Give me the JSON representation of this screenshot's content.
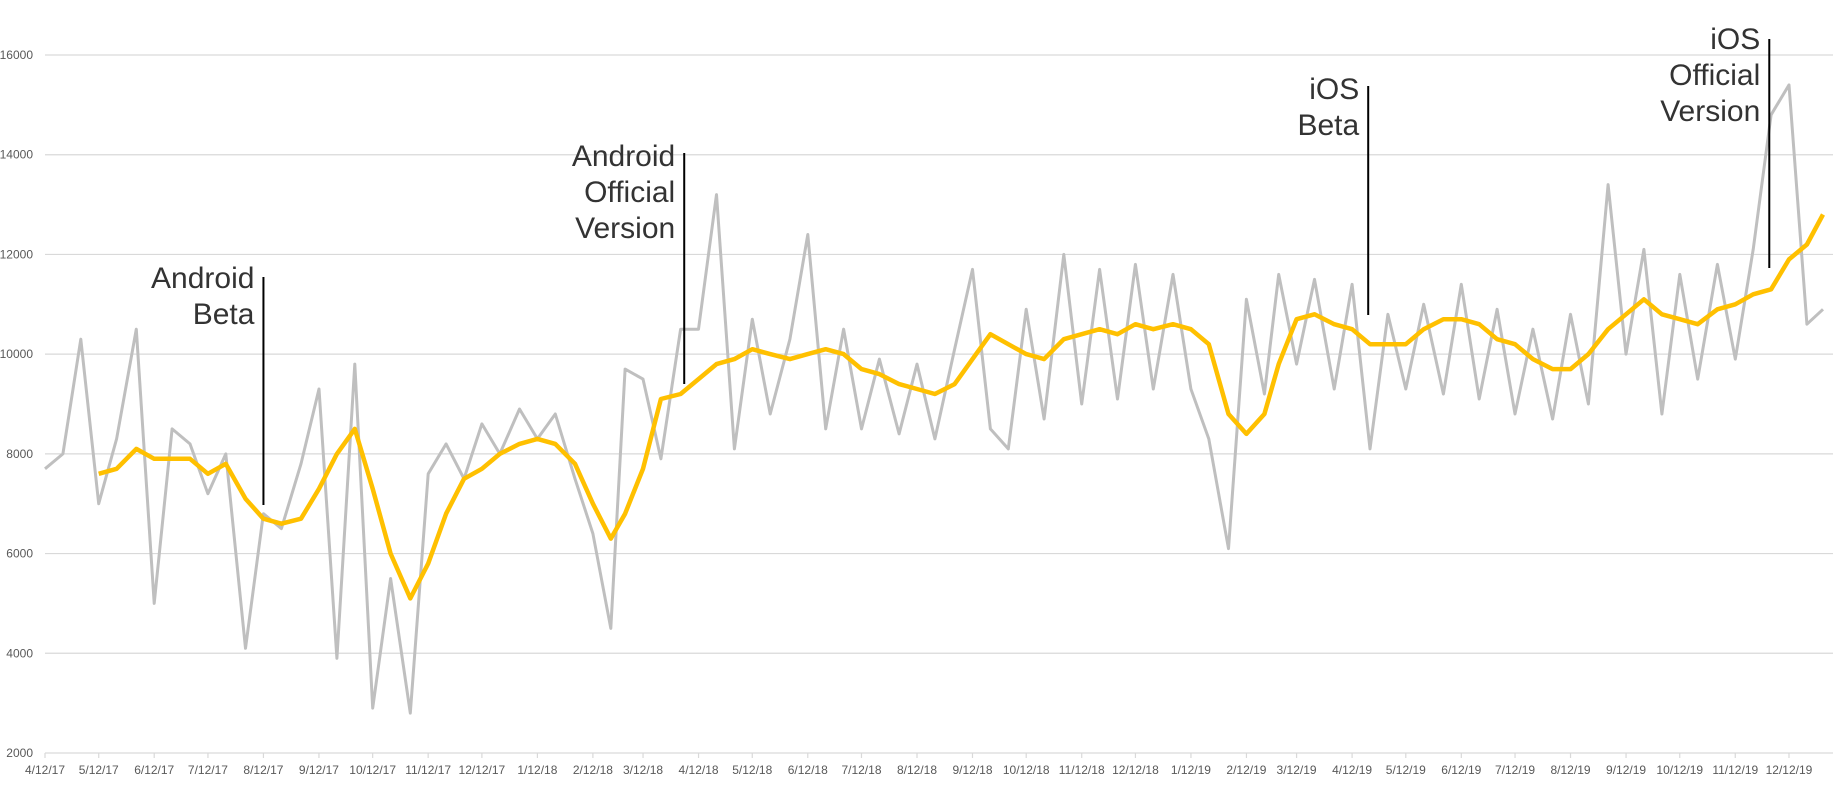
{
  "chart_data": {
    "type": "line",
    "x": [
      "4/12/17",
      "4/22/17",
      "5/2/17",
      "5/12/17",
      "5/22/17",
      "6/2/17",
      "6/12/17",
      "6/22/17",
      "7/2/17",
      "7/12/17",
      "7/22/17",
      "8/2/17",
      "8/12/17",
      "8/22/17",
      "9/2/17",
      "9/12/17",
      "9/22/17",
      "10/2/17",
      "10/12/17",
      "10/22/17",
      "11/2/17",
      "11/12/17",
      "11/22/17",
      "12/2/17",
      "12/12/17",
      "12/22/17",
      "1/2/18",
      "1/12/18",
      "1/22/18",
      "2/2/18",
      "2/12/18",
      "2/22/18",
      "3/2/18",
      "3/12/18",
      "3/22/18",
      "4/2/18",
      "4/12/18",
      "4/22/18",
      "5/2/18",
      "5/12/18",
      "5/22/18",
      "6/2/18",
      "6/12/18",
      "6/22/18",
      "7/2/18",
      "7/12/18",
      "7/22/18",
      "8/2/18",
      "8/12/18",
      "8/22/18",
      "9/2/18",
      "9/12/18",
      "9/22/18",
      "10/2/18",
      "10/12/18",
      "10/22/18",
      "11/2/18",
      "11/12/18",
      "11/22/18",
      "12/2/18",
      "12/12/18",
      "12/22/18",
      "1/2/19",
      "1/12/19",
      "1/22/19",
      "2/2/19",
      "2/12/19",
      "2/22/19",
      "3/2/19",
      "3/12/19",
      "3/22/19",
      "4/2/19",
      "4/12/19",
      "4/22/19",
      "5/2/19",
      "5/12/19",
      "5/22/19",
      "6/2/19",
      "6/12/19",
      "6/22/19",
      "7/2/19",
      "7/12/19",
      "7/22/19",
      "8/2/19",
      "8/12/19",
      "8/22/19",
      "9/2/19",
      "9/12/19",
      "9/22/19",
      "10/2/19",
      "10/12/19",
      "10/22/19",
      "11/2/19",
      "11/12/19",
      "11/22/19",
      "12/2/19",
      "12/12/19",
      "12/22/19",
      "12/31/19"
    ],
    "series": [
      {
        "color": "#bfbfbf",
        "values": [
          7700,
          8000,
          10300,
          7000,
          8300,
          10500,
          5000,
          8500,
          8200,
          7200,
          8000,
          4100,
          6800,
          6500,
          7800,
          9300,
          3900,
          9800,
          2900,
          5500,
          2800,
          7600,
          8200,
          7500,
          8600,
          8000,
          8900,
          8300,
          8800,
          7500,
          6400,
          4500,
          9700,
          9500,
          7900,
          10500,
          10500,
          13200,
          8100,
          10700,
          8800,
          10300,
          12400,
          8500,
          10500,
          8500,
          9900,
          8400,
          9800,
          8300,
          10100,
          11700,
          8500,
          8100,
          10900,
          8700,
          12000,
          9000,
          11700,
          9100,
          11800,
          9300,
          11600,
          9300,
          8300,
          6100,
          11100,
          9200,
          11600,
          9800,
          11500,
          9300,
          11400,
          8100,
          10800,
          9300,
          11000,
          9200,
          11400,
          9100,
          10900,
          8800,
          10500,
          8700,
          10800,
          9000,
          13400,
          10000,
          12100,
          8800,
          11600,
          9500,
          11800,
          9900,
          12100,
          14800,
          15400,
          10600,
          10900
        ]
      },
      {
        "color": "#ffc000",
        "values": [
          null,
          null,
          null,
          7600,
          7700,
          8100,
          7900,
          7900,
          7900,
          7600,
          7800,
          7100,
          6700,
          6600,
          6700,
          7300,
          8000,
          8500,
          7300,
          6000,
          5100,
          5800,
          6800,
          7500,
          7700,
          8000,
          8200,
          8300,
          8200,
          7800,
          7000,
          6300,
          6800,
          7700,
          9100,
          9200,
          9500,
          9800,
          9900,
          10100,
          10000,
          9900,
          10000,
          10100,
          10000,
          9700,
          9600,
          9400,
          9300,
          9200,
          9400,
          9900,
          10400,
          10200,
          10000,
          9900,
          10300,
          10400,
          10500,
          10400,
          10600,
          10500,
          10600,
          10500,
          10200,
          8800,
          8400,
          8800,
          9800,
          10700,
          10800,
          10600,
          10500,
          10200,
          10200,
          10200,
          10500,
          10700,
          10700,
          10600,
          10300,
          10200,
          9900,
          9700,
          9700,
          10000,
          10500,
          10800,
          11100,
          10800,
          10700,
          10600,
          10900,
          11000,
          11200,
          11300,
          11900,
          12200,
          12800
        ]
      }
    ],
    "xlim": [
      "4/12/17",
      "12/31/19"
    ],
    "xticks": [
      "4/12/17",
      "5/12/17",
      "6/12/17",
      "7/12/17",
      "8/12/17",
      "9/12/17",
      "10/12/17",
      "11/12/17",
      "12/12/17",
      "1/12/18",
      "2/12/18",
      "3/12/18",
      "4/12/18",
      "5/12/18",
      "6/12/18",
      "7/12/18",
      "8/12/18",
      "9/12/18",
      "10/12/18",
      "11/12/18",
      "12/12/18",
      "1/12/19",
      "2/12/19",
      "3/12/19",
      "4/12/19",
      "5/12/19",
      "6/12/19",
      "7/12/19",
      "8/12/19",
      "9/12/19",
      "10/12/19",
      "11/12/19",
      "12/12/19"
    ],
    "ylim": [
      2000,
      16000
    ],
    "yticks": [
      2000,
      4000,
      6000,
      8000,
      10000,
      12000,
      14000,
      16000
    ],
    "grid": true,
    "annotations": [
      {
        "text": [
          "Android",
          "Beta"
        ],
        "x": "8/12/17"
      },
      {
        "text": [
          "Android",
          "Official",
          "Version"
        ],
        "x": "4/4/18"
      },
      {
        "text": [
          "iOS",
          "Beta"
        ],
        "x": "4/21/19"
      },
      {
        "text": [
          "iOS",
          "Official",
          "Version"
        ],
        "x": "12/1/19"
      }
    ]
  }
}
